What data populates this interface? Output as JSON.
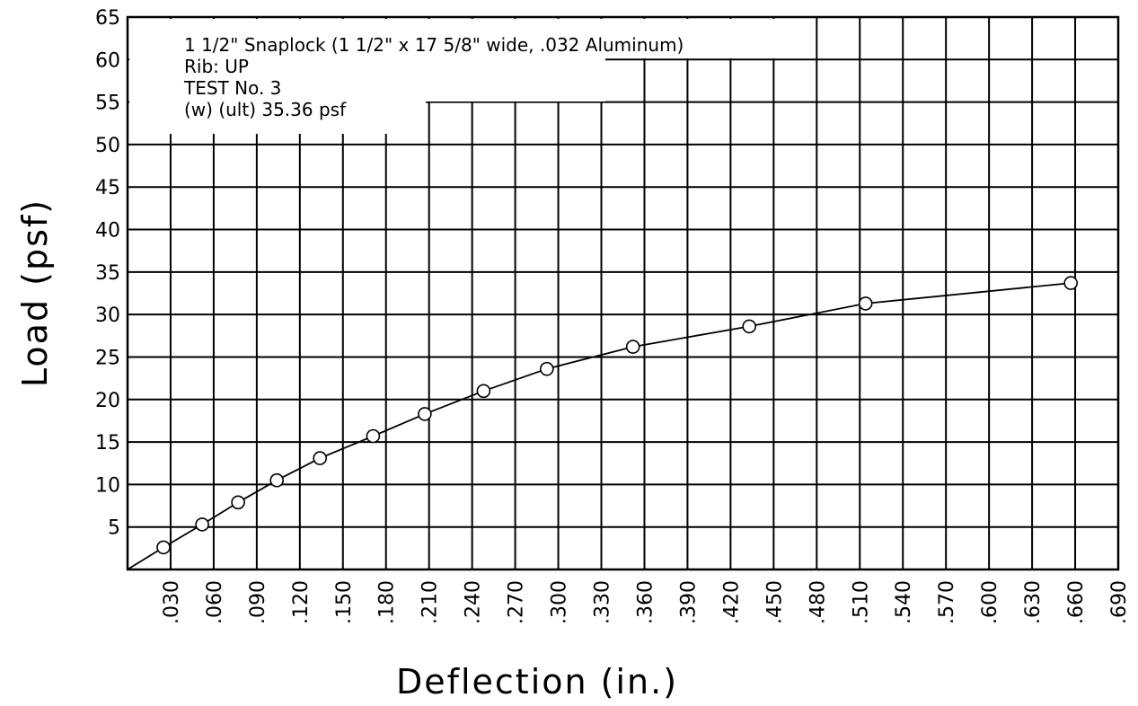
{
  "chart_data": {
    "type": "line",
    "xlabel": "Deflection  (in.)",
    "ylabel": "Load  (psf)",
    "x_ticks": [
      ".030",
      ".060",
      ".090",
      ".120",
      ".150",
      ".180",
      ".210",
      ".240",
      ".270",
      ".300",
      ".330",
      ".360",
      ".390",
      ".420",
      ".450",
      ".480",
      ".510",
      ".540",
      ".570",
      ".600",
      ".630",
      ".660",
      ".690"
    ],
    "y_ticks": [
      "5",
      "10",
      "15",
      "20",
      "25",
      "30",
      "35",
      "40",
      "45",
      "50",
      "55",
      "60",
      "65"
    ],
    "xlim": [
      0,
      0.69
    ],
    "ylim": [
      0,
      65
    ],
    "grid": true,
    "annotation_lines": [
      "1  1/2\"  Snaplock  (1  1/2\"   x  17  5/8\"  wide,  .032  Aluminum)",
      "Rib:  UP",
      "TEST  No.  3",
      "(w)  (ult)   35.36  psf"
    ],
    "series": [
      {
        "x": [
          0.025,
          0.052,
          0.077,
          0.104,
          0.134,
          0.171,
          0.207,
          0.248,
          0.292,
          0.352,
          0.433,
          0.514,
          0.657
        ],
        "y": [
          2.6,
          5.3,
          7.9,
          10.5,
          13.1,
          15.7,
          18.3,
          21.0,
          23.6,
          26.2,
          28.6,
          31.3,
          33.7
        ]
      }
    ]
  }
}
